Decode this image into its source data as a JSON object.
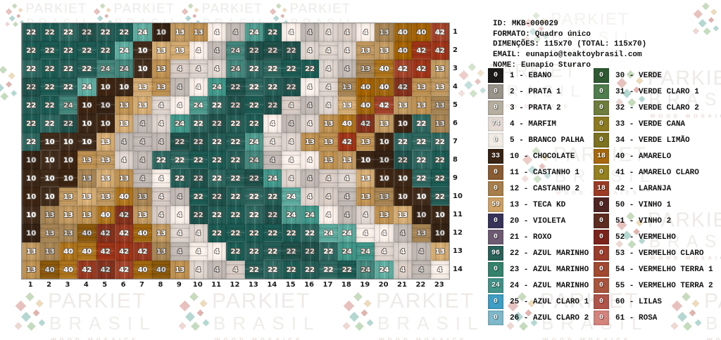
{
  "watermark": {
    "title": "PARKIET",
    "subtitle": "BRASIL",
    "tagline": "WOOD MOSAICS"
  },
  "info": {
    "lines": [
      {
        "label": "ID:",
        "value": "MKB-000029"
      },
      {
        "label": "FORMATO:",
        "value": "Quadro único"
      },
      {
        "label": "DIMENÇÕES:",
        "value": "115x70 (TOTAL: 115x70)"
      },
      {
        "label": "EMAIL:",
        "value": "eunapio@teaktoybrasil.com"
      },
      {
        "label": "NOME:",
        "value": "Eunapio Sturaro"
      }
    ]
  },
  "grid": {
    "col_labels": [
      1,
      2,
      3,
      4,
      5,
      6,
      7,
      8,
      9,
      10,
      11,
      12,
      13,
      14,
      15,
      16,
      17,
      18,
      19,
      20,
      21,
      22,
      23
    ],
    "row_labels": [
      1,
      2,
      3,
      4,
      5,
      6,
      7,
      8,
      9,
      10,
      11,
      12,
      13,
      14
    ],
    "tile_colors": {
      "4": "#e3d8d2",
      "10": "#3e2817",
      "13": "#c59c62",
      "22": "#266059",
      "24": "#4f9e92",
      "40": "#a5690f",
      "42": "#9c3b22"
    },
    "cells": [
      [
        22,
        22,
        22,
        22,
        22,
        22,
        24,
        10,
        13,
        13,
        4,
        4,
        24,
        22,
        4,
        4,
        4,
        4,
        4,
        13,
        40,
        40,
        42
      ],
      [
        22,
        22,
        22,
        22,
        22,
        24,
        10,
        13,
        13,
        4,
        4,
        24,
        22,
        22,
        22,
        4,
        4,
        4,
        13,
        13,
        40,
        42,
        42
      ],
      [
        22,
        22,
        22,
        22,
        24,
        24,
        10,
        13,
        4,
        4,
        4,
        24,
        22,
        22,
        22,
        22,
        4,
        4,
        13,
        40,
        42,
        42,
        13
      ],
      [
        22,
        22,
        22,
        24,
        10,
        10,
        13,
        13,
        4,
        4,
        24,
        22,
        22,
        22,
        22,
        4,
        4,
        13,
        40,
        40,
        42,
        13,
        13
      ],
      [
        22,
        22,
        24,
        10,
        10,
        13,
        13,
        4,
        4,
        24,
        22,
        22,
        22,
        22,
        4,
        4,
        4,
        13,
        40,
        42,
        13,
        13,
        13
      ],
      [
        22,
        22,
        22,
        10,
        10,
        13,
        4,
        4,
        24,
        22,
        22,
        22,
        22,
        4,
        4,
        4,
        13,
        40,
        42,
        13,
        10,
        22,
        13
      ],
      [
        22,
        10,
        10,
        10,
        13,
        4,
        4,
        4,
        22,
        22,
        22,
        22,
        24,
        4,
        4,
        13,
        13,
        42,
        13,
        10,
        22,
        22,
        22
      ],
      [
        10,
        10,
        10,
        13,
        13,
        4,
        4,
        22,
        22,
        22,
        22,
        22,
        24,
        4,
        4,
        4,
        13,
        13,
        10,
        10,
        22,
        22,
        22
      ],
      [
        10,
        10,
        10,
        13,
        13,
        13,
        4,
        4,
        22,
        22,
        22,
        22,
        22,
        24,
        4,
        4,
        4,
        4,
        13,
        10,
        10,
        22,
        22
      ],
      [
        10,
        10,
        13,
        13,
        13,
        40,
        13,
        4,
        4,
        22,
        22,
        22,
        22,
        22,
        24,
        4,
        4,
        4,
        13,
        13,
        10,
        10,
        22
      ],
      [
        10,
        13,
        13,
        13,
        40,
        42,
        13,
        4,
        4,
        22,
        22,
        22,
        22,
        22,
        24,
        24,
        4,
        4,
        4,
        13,
        13,
        10,
        10
      ],
      [
        10,
        13,
        13,
        40,
        42,
        42,
        40,
        13,
        4,
        4,
        22,
        22,
        22,
        22,
        22,
        22,
        24,
        24,
        4,
        4,
        4,
        13,
        10
      ],
      [
        13,
        13,
        40,
        40,
        42,
        42,
        42,
        13,
        4,
        4,
        4,
        22,
        22,
        22,
        22,
        22,
        22,
        24,
        24,
        4,
        4,
        4,
        13
      ],
      [
        13,
        40,
        40,
        42,
        42,
        42,
        40,
        40,
        13,
        4,
        4,
        4,
        22,
        22,
        22,
        22,
        22,
        22,
        24,
        24,
        4,
        4,
        4
      ]
    ]
  },
  "legend": {
    "column1": [
      {
        "count": 0,
        "code": 1,
        "name": "EBANO",
        "color": "#1d1b19"
      },
      {
        "count": 0,
        "code": 2,
        "name": "PRATA 1",
        "color": "#99948a"
      },
      {
        "count": 0,
        "code": 3,
        "name": "PRATA 2",
        "color": "#b6af9f"
      },
      {
        "count": 74,
        "code": 4,
        "name": "MARFIM",
        "color": "#e6dcd5"
      },
      {
        "count": 0,
        "code": 5,
        "name": "BRANCO PALHA",
        "color": "#f1ede6"
      },
      {
        "count": 33,
        "code": 10,
        "name": "CHOCOLATE",
        "color": "#3a2414"
      },
      {
        "count": 0,
        "code": 11,
        "name": "CASTANHO 1",
        "color": "#8a5c33"
      },
      {
        "count": 0,
        "code": 12,
        "name": "CASTANHO 2",
        "color": "#a87e4b"
      },
      {
        "count": 59,
        "code": 13,
        "name": "TECA KD",
        "color": "#cfa266"
      },
      {
        "count": 0,
        "code": 20,
        "name": "VIOLETA",
        "color": "#37325a"
      },
      {
        "count": 0,
        "code": 21,
        "name": "ROXO",
        "color": "#6f5a73"
      },
      {
        "count": 96,
        "code": 22,
        "name": "AZUL MARINHO",
        "color": "#2a625a"
      },
      {
        "count": 0,
        "code": 23,
        "name": "AZUL MARINHO 1",
        "color": "#35826d"
      },
      {
        "count": 24,
        "code": 24,
        "name": "AZUL MARINHO 2",
        "color": "#43948a"
      },
      {
        "count": 0,
        "code": 25,
        "name": "AZUL CLARO 1",
        "color": "#3f9ec4"
      },
      {
        "count": 0,
        "code": 26,
        "name": "AZUL CLARO 2",
        "color": "#7fb9cb"
      }
    ],
    "column2": [
      {
        "count": 0,
        "code": 30,
        "name": "VERDE",
        "color": "#2e5a33"
      },
      {
        "count": 0,
        "code": 31,
        "name": "VERDE CLARO 1",
        "color": "#4f7e4c"
      },
      {
        "count": 0,
        "code": 32,
        "name": "VERDE CLARO 2",
        "color": "#6f7e3e"
      },
      {
        "count": 0,
        "code": 33,
        "name": "VERDE CANA",
        "color": "#8c7a21"
      },
      {
        "count": 0,
        "code": 34,
        "name": "VERDE LIMÃO",
        "color": "#7d7220"
      },
      {
        "count": 18,
        "code": 40,
        "name": "AMARELO",
        "color": "#a8690f"
      },
      {
        "count": 0,
        "code": 41,
        "name": "AMARELO CLARO",
        "color": "#968120"
      },
      {
        "count": 18,
        "code": 42,
        "name": "LARANJA",
        "color": "#9e3c24"
      },
      {
        "count": 0,
        "code": 50,
        "name": "VINHO 1",
        "color": "#4f2523"
      },
      {
        "count": 0,
        "code": 51,
        "name": "VINHO 2",
        "color": "#5f2d20"
      },
      {
        "count": 0,
        "code": 52,
        "name": "VERMELHO",
        "color": "#7c231c"
      },
      {
        "count": 0,
        "code": 53,
        "name": "VERMELHO CLARO",
        "color": "#9d3c2b"
      },
      {
        "count": 0,
        "code": 54,
        "name": "VERMELHO TERRA 1",
        "color": "#a34a31"
      },
      {
        "count": 0,
        "code": 55,
        "name": "VERMELHO TERRA 2",
        "color": "#a9543e"
      },
      {
        "count": 0,
        "code": 60,
        "name": "LILAS",
        "color": "#b1544b"
      },
      {
        "count": 0,
        "code": 61,
        "name": "ROSA",
        "color": "#d5847c"
      }
    ]
  }
}
